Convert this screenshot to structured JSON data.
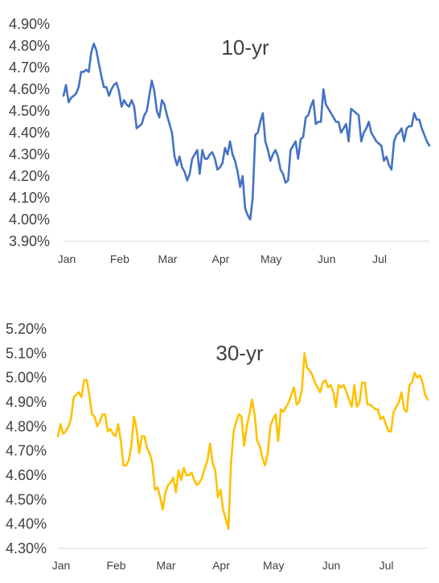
{
  "chart_data": [
    {
      "type": "line",
      "title": "10-yr",
      "xlabel": "",
      "ylabel": "",
      "ylim": [
        3.9,
        4.9
      ],
      "y_ticks": [
        "4.90%",
        "4.80%",
        "4.70%",
        "4.60%",
        "4.50%",
        "4.40%",
        "4.30%",
        "4.20%",
        "4.10%",
        "4.00%",
        "3.90%"
      ],
      "x_ticks": [
        "Jan",
        "Feb",
        "Mar",
        "Apr",
        "May",
        "Jun",
        "Jul"
      ],
      "grid": false,
      "color": "#4472C4",
      "series": [
        {
          "values": [
            4.57,
            4.62,
            4.54,
            4.56,
            4.57,
            4.58,
            4.61,
            4.68,
            4.68,
            4.69,
            4.68,
            4.77,
            4.81,
            4.78,
            4.72,
            4.66,
            4.61,
            4.61,
            4.57,
            4.6,
            4.62,
            4.63,
            4.59,
            4.52,
            4.55,
            4.53,
            4.52,
            4.55,
            4.52,
            4.42,
            4.43,
            4.44,
            4.48,
            4.5,
            4.57,
            4.64,
            4.59,
            4.5,
            4.47,
            4.55,
            4.53,
            4.48,
            4.44,
            4.4,
            4.29,
            4.25,
            4.29,
            4.24,
            4.22,
            4.18,
            4.21,
            4.28,
            4.3,
            4.32,
            4.21,
            4.32,
            4.28,
            4.28,
            4.3,
            4.31,
            4.28,
            4.23,
            4.24,
            4.26,
            4.33,
            4.3,
            4.36,
            4.3,
            4.27,
            4.22,
            4.15,
            4.2,
            4.05,
            4.02,
            4.0,
            4.1,
            4.39,
            4.4,
            4.45,
            4.49,
            4.36,
            4.32,
            4.27,
            4.3,
            4.32,
            4.29,
            4.23,
            4.21,
            4.17,
            4.18,
            4.32,
            4.34,
            4.36,
            4.28,
            4.37,
            4.38,
            4.47,
            4.48,
            4.52,
            4.55,
            4.44,
            4.45,
            4.45,
            4.6,
            4.53,
            4.51,
            4.49,
            4.47,
            4.45,
            4.45,
            4.4,
            4.42,
            4.44,
            4.36,
            4.51,
            4.5,
            4.49,
            4.48,
            4.36,
            4.4,
            4.42,
            4.45,
            4.4,
            4.38,
            4.36,
            4.35,
            4.34,
            4.27,
            4.29,
            4.25,
            4.23,
            4.36,
            4.39,
            4.4,
            4.42,
            4.36,
            4.42,
            4.43,
            4.43,
            4.49,
            4.46,
            4.46,
            4.42,
            4.39,
            4.36,
            4.34
          ]
        }
      ]
    },
    {
      "type": "line",
      "title": "30-yr",
      "xlabel": "",
      "ylabel": "",
      "ylim": [
        4.3,
        5.2
      ],
      "y_ticks": [
        "5.20%",
        "5.10%",
        "5.00%",
        "4.90%",
        "4.80%",
        "4.70%",
        "4.60%",
        "4.50%",
        "4.40%",
        "4.30%"
      ],
      "x_ticks": [
        "Jan",
        "Feb",
        "Mar",
        "Apr",
        "May",
        "Jun",
        "Jul"
      ],
      "grid": false,
      "color": "#FFC000",
      "series": [
        {
          "values": [
            4.76,
            4.81,
            4.77,
            4.78,
            4.8,
            4.83,
            4.92,
            4.93,
            4.94,
            4.92,
            4.99,
            4.99,
            4.93,
            4.85,
            4.84,
            4.8,
            4.82,
            4.85,
            4.85,
            4.78,
            4.79,
            4.77,
            4.76,
            4.81,
            4.74,
            4.64,
            4.64,
            4.66,
            4.72,
            4.84,
            4.79,
            4.69,
            4.76,
            4.76,
            4.71,
            4.69,
            4.65,
            4.54,
            4.55,
            4.51,
            4.46,
            4.53,
            4.56,
            4.57,
            4.59,
            4.53,
            4.62,
            4.58,
            4.63,
            4.6,
            4.6,
            4.61,
            4.58,
            4.56,
            4.57,
            4.59,
            4.63,
            4.66,
            4.73,
            4.65,
            4.62,
            4.51,
            4.54,
            4.46,
            4.42,
            4.38,
            4.65,
            4.78,
            4.82,
            4.85,
            4.84,
            4.72,
            4.8,
            4.85,
            4.91,
            4.85,
            4.74,
            4.72,
            4.67,
            4.64,
            4.69,
            4.8,
            4.83,
            4.85,
            4.74,
            4.87,
            4.86,
            4.88,
            4.9,
            4.93,
            4.96,
            4.89,
            4.9,
            4.95,
            5.1,
            5.04,
            5.03,
            5.01,
            4.98,
            4.96,
            4.94,
            4.98,
            4.99,
            4.96,
            4.97,
            4.94,
            4.88,
            4.97,
            4.96,
            4.97,
            4.94,
            4.91,
            4.88,
            4.97,
            4.88,
            4.9,
            4.98,
            4.98,
            4.89,
            4.89,
            4.88,
            4.87,
            4.87,
            4.83,
            4.84,
            4.81,
            4.78,
            4.78,
            4.86,
            4.88,
            4.9,
            4.94,
            4.87,
            4.86,
            4.97,
            4.98,
            5.02,
            5.0,
            5.01,
            4.98,
            4.93,
            4.91
          ]
        }
      ]
    }
  ]
}
